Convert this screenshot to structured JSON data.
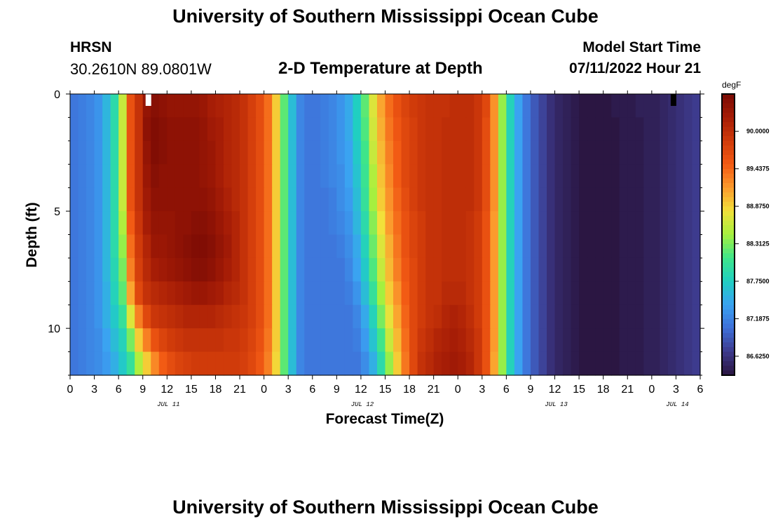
{
  "header": {
    "title": "University of Southern Mississippi Ocean Cube",
    "station": "HRSN",
    "coords": "30.2610N  89.0801W",
    "subtitle": "2-D Temperature at Depth",
    "model_start_label": "Model Start Time",
    "model_start_value": "07/11/2022 Hour 21"
  },
  "footer": {
    "title": "University of Southern Mississippi Ocean Cube"
  },
  "chart_data": {
    "type": "heatmap",
    "title": "2-D Temperature at Depth",
    "xlabel": "Forecast Time(Z)",
    "ylabel": "Depth (ft)",
    "x_range_hours": [
      0,
      78
    ],
    "y_range_ft": [
      0,
      12
    ],
    "y_inverted": true,
    "x_tick_labels": [
      "0",
      "3",
      "6",
      "9",
      "12",
      "15",
      "18",
      "21",
      "0",
      "3",
      "6",
      "9",
      "12",
      "15",
      "18",
      "21",
      "0",
      "3",
      "6",
      "9",
      "12",
      "15",
      "18",
      "21",
      "0",
      "3",
      "6"
    ],
    "y_tick_values": [
      0,
      5,
      10
    ],
    "day_labels": [
      {
        "label": "JUL 11",
        "hour": 12
      },
      {
        "label": "JUL 12",
        "hour": 36
      },
      {
        "label": "JUL 13",
        "hour": 60
      },
      {
        "label": "JUL 14",
        "hour": 75
      }
    ],
    "colorbar": {
      "units": "degF",
      "min": 86.34,
      "max": 90.56,
      "labels": [
        "90.0000",
        "89.4375",
        "88.8750",
        "88.3125",
        "87.7500",
        "87.1875",
        "86.6250"
      ],
      "values": [
        90.0,
        89.4375,
        88.875,
        88.3125,
        87.75,
        87.1875,
        86.625
      ],
      "colors": [
        "#2a1540",
        "#3d3a8c",
        "#3f6fd8",
        "#3aa2f2",
        "#20cfc2",
        "#3ee58a",
        "#a5f03f",
        "#f2e03a",
        "#fb9a2d",
        "#f25a14",
        "#cf3a0a",
        "#a51c06",
        "#7a0a04"
      ]
    },
    "grid_columns": 78,
    "grid_rows": 12,
    "temperature_degF": [
      [
        87.1,
        87.15,
        87.2,
        87.3,
        87.55,
        87.9,
        88.6,
        89.6,
        89.95,
        90.35,
        90.45,
        90.4,
        90.35,
        90.35,
        90.35,
        90.35,
        90.3,
        90.2,
        90.15,
        90.1,
        90.05,
        89.95,
        89.8,
        89.65,
        89.4,
        88.9,
        88.2,
        87.6,
        87.2,
        87.1,
        87.1,
        87.15,
        87.2,
        87.3,
        87.45,
        87.75,
        88.2,
        88.7,
        89.1,
        89.4,
        89.6,
        89.75,
        89.85,
        89.9,
        89.95,
        89.95,
        89.95,
        90.0,
        90.0,
        90.0,
        89.9,
        89.7,
        89.2,
        88.4,
        87.8,
        87.4,
        87.1,
        86.9,
        86.75,
        86.6,
        86.5,
        86.45,
        86.4,
        86.35,
        86.35,
        86.35,
        86.35,
        86.4,
        86.4,
        86.4,
        86.45,
        86.45,
        86.45,
        86.5,
        86.55,
        86.6,
        86.65,
        86.7
      ],
      [
        87.1,
        87.15,
        87.2,
        87.3,
        87.55,
        87.9,
        88.6,
        89.6,
        89.95,
        90.4,
        90.5,
        90.45,
        90.4,
        90.4,
        90.4,
        90.4,
        90.35,
        90.25,
        90.2,
        90.1,
        90.05,
        89.95,
        89.8,
        89.65,
        89.4,
        88.9,
        88.2,
        87.6,
        87.2,
        87.1,
        87.1,
        87.15,
        87.2,
        87.3,
        87.45,
        87.75,
        88.15,
        88.65,
        89.05,
        89.35,
        89.55,
        89.7,
        89.8,
        89.9,
        89.95,
        89.95,
        90.0,
        90.0,
        90.0,
        90.0,
        89.9,
        89.65,
        89.2,
        88.4,
        87.8,
        87.4,
        87.1,
        86.9,
        86.75,
        86.6,
        86.5,
        86.45,
        86.4,
        86.35,
        86.35,
        86.35,
        86.35,
        86.35,
        86.4,
        86.4,
        86.4,
        86.45,
        86.45,
        86.5,
        86.55,
        86.6,
        86.65,
        86.7
      ],
      [
        87.1,
        87.15,
        87.2,
        87.3,
        87.55,
        87.9,
        88.6,
        89.6,
        89.95,
        90.35,
        90.5,
        90.45,
        90.4,
        90.4,
        90.4,
        90.4,
        90.35,
        90.3,
        90.2,
        90.1,
        90.05,
        89.95,
        89.8,
        89.65,
        89.4,
        88.9,
        88.2,
        87.6,
        87.2,
        87.1,
        87.1,
        87.15,
        87.2,
        87.3,
        87.4,
        87.7,
        88.1,
        88.6,
        89.0,
        89.3,
        89.5,
        89.7,
        89.8,
        89.9,
        89.95,
        89.95,
        90.0,
        90.0,
        90.0,
        90.0,
        89.9,
        89.65,
        89.2,
        88.4,
        87.8,
        87.4,
        87.1,
        86.9,
        86.75,
        86.6,
        86.5,
        86.45,
        86.4,
        86.35,
        86.35,
        86.35,
        86.35,
        86.35,
        86.4,
        86.4,
        86.4,
        86.45,
        86.45,
        86.5,
        86.55,
        86.6,
        86.65,
        86.7
      ],
      [
        87.1,
        87.15,
        87.2,
        87.3,
        87.55,
        87.9,
        88.6,
        89.6,
        89.95,
        90.3,
        90.45,
        90.4,
        90.4,
        90.4,
        90.4,
        90.4,
        90.35,
        90.3,
        90.2,
        90.1,
        90.05,
        89.95,
        89.8,
        89.65,
        89.4,
        88.9,
        88.2,
        87.6,
        87.2,
        87.1,
        87.1,
        87.15,
        87.2,
        87.25,
        87.4,
        87.65,
        88.05,
        88.5,
        88.95,
        89.25,
        89.5,
        89.7,
        89.8,
        89.9,
        89.95,
        89.95,
        90.0,
        90.0,
        90.0,
        90.0,
        89.9,
        89.65,
        89.2,
        88.4,
        87.8,
        87.4,
        87.1,
        86.9,
        86.75,
        86.6,
        86.5,
        86.45,
        86.4,
        86.35,
        86.35,
        86.35,
        86.35,
        86.35,
        86.4,
        86.4,
        86.4,
        86.45,
        86.45,
        86.5,
        86.55,
        86.6,
        86.65,
        86.7
      ],
      [
        87.1,
        87.15,
        87.2,
        87.3,
        87.55,
        87.9,
        88.6,
        89.6,
        89.95,
        90.25,
        90.4,
        90.4,
        90.4,
        90.4,
        90.4,
        90.4,
        90.4,
        90.35,
        90.25,
        90.15,
        90.05,
        89.95,
        89.8,
        89.65,
        89.4,
        88.9,
        88.2,
        87.6,
        87.2,
        87.1,
        87.1,
        87.1,
        87.15,
        87.25,
        87.35,
        87.6,
        88.0,
        88.45,
        88.9,
        89.2,
        89.45,
        89.65,
        89.8,
        89.9,
        89.95,
        89.95,
        90.0,
        90.0,
        90.0,
        90.0,
        89.9,
        89.65,
        89.2,
        88.4,
        87.8,
        87.4,
        87.1,
        86.9,
        86.75,
        86.6,
        86.5,
        86.45,
        86.4,
        86.35,
        86.35,
        86.35,
        86.35,
        86.35,
        86.4,
        86.4,
        86.4,
        86.45,
        86.45,
        86.5,
        86.55,
        86.6,
        86.65,
        86.7
      ],
      [
        87.1,
        87.15,
        87.2,
        87.3,
        87.55,
        87.9,
        88.5,
        89.5,
        89.9,
        90.2,
        90.35,
        90.35,
        90.35,
        90.4,
        90.4,
        90.45,
        90.45,
        90.4,
        90.3,
        90.2,
        90.1,
        89.95,
        89.8,
        89.65,
        89.4,
        88.9,
        88.2,
        87.6,
        87.2,
        87.1,
        87.1,
        87.1,
        87.15,
        87.2,
        87.3,
        87.55,
        87.9,
        88.35,
        88.8,
        89.15,
        89.4,
        89.6,
        89.75,
        89.85,
        89.95,
        89.95,
        90.0,
        90.0,
        90.0,
        89.95,
        89.85,
        89.6,
        89.15,
        88.4,
        87.8,
        87.4,
        87.1,
        86.9,
        86.75,
        86.6,
        86.5,
        86.45,
        86.4,
        86.35,
        86.35,
        86.35,
        86.35,
        86.35,
        86.4,
        86.4,
        86.4,
        86.45,
        86.45,
        86.5,
        86.55,
        86.6,
        86.65,
        86.7
      ],
      [
        87.1,
        87.15,
        87.2,
        87.3,
        87.55,
        87.9,
        88.4,
        89.4,
        89.85,
        90.1,
        90.3,
        90.3,
        90.35,
        90.4,
        90.45,
        90.5,
        90.5,
        90.45,
        90.35,
        90.25,
        90.1,
        89.95,
        89.8,
        89.65,
        89.4,
        88.9,
        88.2,
        87.6,
        87.2,
        87.1,
        87.1,
        87.1,
        87.1,
        87.15,
        87.25,
        87.45,
        87.8,
        88.25,
        88.7,
        89.05,
        89.35,
        89.6,
        89.75,
        89.85,
        89.95,
        89.95,
        90.0,
        90.0,
        90.0,
        89.95,
        89.85,
        89.6,
        89.15,
        88.4,
        87.8,
        87.4,
        87.1,
        86.9,
        86.75,
        86.6,
        86.5,
        86.45,
        86.4,
        86.35,
        86.35,
        86.35,
        86.35,
        86.35,
        86.4,
        86.4,
        86.4,
        86.45,
        86.45,
        86.5,
        86.55,
        86.6,
        86.65,
        86.7
      ],
      [
        87.1,
        87.15,
        87.2,
        87.3,
        87.55,
        87.85,
        88.3,
        89.3,
        89.8,
        90.05,
        90.2,
        90.25,
        90.3,
        90.35,
        90.4,
        90.45,
        90.45,
        90.4,
        90.3,
        90.2,
        90.1,
        89.95,
        89.8,
        89.65,
        89.4,
        88.9,
        88.2,
        87.6,
        87.2,
        87.1,
        87.1,
        87.1,
        87.1,
        87.1,
        87.2,
        87.4,
        87.7,
        88.15,
        88.6,
        89.0,
        89.3,
        89.55,
        89.7,
        89.85,
        89.95,
        89.95,
        90.0,
        90.0,
        90.0,
        89.95,
        89.85,
        89.6,
        89.15,
        88.4,
        87.8,
        87.4,
        87.1,
        86.9,
        86.75,
        86.6,
        86.5,
        86.45,
        86.4,
        86.35,
        86.35,
        86.35,
        86.35,
        86.35,
        86.4,
        86.4,
        86.4,
        86.45,
        86.45,
        86.5,
        86.55,
        86.6,
        86.65,
        86.7
      ],
      [
        87.1,
        87.15,
        87.2,
        87.3,
        87.5,
        87.8,
        88.2,
        89.1,
        89.7,
        89.95,
        90.05,
        90.1,
        90.15,
        90.2,
        90.25,
        90.3,
        90.3,
        90.25,
        90.2,
        90.1,
        90.05,
        89.95,
        89.8,
        89.65,
        89.4,
        88.9,
        88.2,
        87.6,
        87.2,
        87.1,
        87.1,
        87.1,
        87.1,
        87.1,
        87.15,
        87.3,
        87.6,
        88.0,
        88.45,
        88.9,
        89.2,
        89.5,
        89.7,
        89.85,
        89.95,
        89.95,
        90.05,
        90.05,
        90.05,
        89.95,
        89.85,
        89.6,
        89.15,
        88.4,
        87.8,
        87.4,
        87.1,
        86.9,
        86.75,
        86.6,
        86.5,
        86.45,
        86.4,
        86.35,
        86.35,
        86.35,
        86.35,
        86.35,
        86.4,
        86.4,
        86.4,
        86.45,
        86.45,
        86.5,
        86.55,
        86.6,
        86.65,
        86.7
      ],
      [
        87.1,
        87.15,
        87.2,
        87.3,
        87.5,
        87.7,
        88.0,
        88.7,
        89.3,
        89.7,
        89.9,
        89.95,
        90.0,
        90.05,
        90.1,
        90.1,
        90.1,
        90.1,
        90.05,
        90.0,
        89.95,
        89.9,
        89.8,
        89.65,
        89.4,
        88.9,
        88.2,
        87.6,
        87.2,
        87.1,
        87.1,
        87.1,
        87.1,
        87.1,
        87.1,
        87.2,
        87.45,
        87.8,
        88.3,
        88.75,
        89.1,
        89.45,
        89.7,
        89.85,
        89.95,
        90.0,
        90.1,
        90.15,
        90.1,
        90.0,
        89.85,
        89.6,
        89.15,
        88.4,
        87.8,
        87.4,
        87.1,
        86.9,
        86.75,
        86.6,
        86.5,
        86.45,
        86.4,
        86.35,
        86.35,
        86.35,
        86.35,
        86.35,
        86.4,
        86.4,
        86.4,
        86.45,
        86.45,
        86.5,
        86.55,
        86.6,
        86.65,
        86.7
      ],
      [
        87.1,
        87.15,
        87.2,
        87.25,
        87.4,
        87.6,
        87.8,
        88.3,
        88.9,
        89.3,
        89.6,
        89.75,
        89.85,
        89.9,
        89.95,
        89.95,
        89.95,
        89.95,
        89.95,
        89.9,
        89.9,
        89.85,
        89.75,
        89.6,
        89.35,
        88.9,
        88.2,
        87.6,
        87.2,
        87.1,
        87.1,
        87.1,
        87.1,
        87.1,
        87.1,
        87.15,
        87.35,
        87.65,
        88.1,
        88.6,
        89.0,
        89.4,
        89.7,
        89.9,
        90.0,
        90.1,
        90.15,
        90.2,
        90.15,
        90.05,
        89.9,
        89.6,
        89.15,
        88.4,
        87.8,
        87.4,
        87.1,
        86.9,
        86.75,
        86.6,
        86.5,
        86.45,
        86.4,
        86.35,
        86.35,
        86.35,
        86.35,
        86.35,
        86.4,
        86.4,
        86.4,
        86.45,
        86.45,
        86.5,
        86.55,
        86.6,
        86.65,
        86.7
      ],
      [
        87.1,
        87.15,
        87.2,
        87.25,
        87.35,
        87.5,
        87.7,
        88.0,
        88.5,
        88.9,
        89.25,
        89.5,
        89.65,
        89.75,
        89.8,
        89.85,
        89.85,
        89.85,
        89.85,
        89.85,
        89.85,
        89.8,
        89.7,
        89.55,
        89.3,
        88.85,
        88.2,
        87.6,
        87.2,
        87.1,
        87.1,
        87.1,
        87.1,
        87.1,
        87.1,
        87.1,
        87.25,
        87.5,
        87.9,
        88.4,
        88.9,
        89.35,
        89.7,
        89.95,
        90.05,
        90.15,
        90.2,
        90.25,
        90.2,
        90.1,
        89.9,
        89.6,
        89.1,
        88.4,
        87.8,
        87.4,
        87.1,
        86.9,
        86.75,
        86.6,
        86.5,
        86.45,
        86.4,
        86.35,
        86.35,
        86.35,
        86.35,
        86.35,
        86.4,
        86.4,
        86.4,
        86.45,
        86.45,
        86.5,
        86.55,
        86.6,
        86.65,
        86.7
      ]
    ],
    "markers": [
      {
        "hour": 9,
        "depth_ft": 0,
        "color": "#ffffff"
      },
      {
        "hour": 74,
        "depth_ft": 0,
        "color": "#000000"
      }
    ]
  }
}
